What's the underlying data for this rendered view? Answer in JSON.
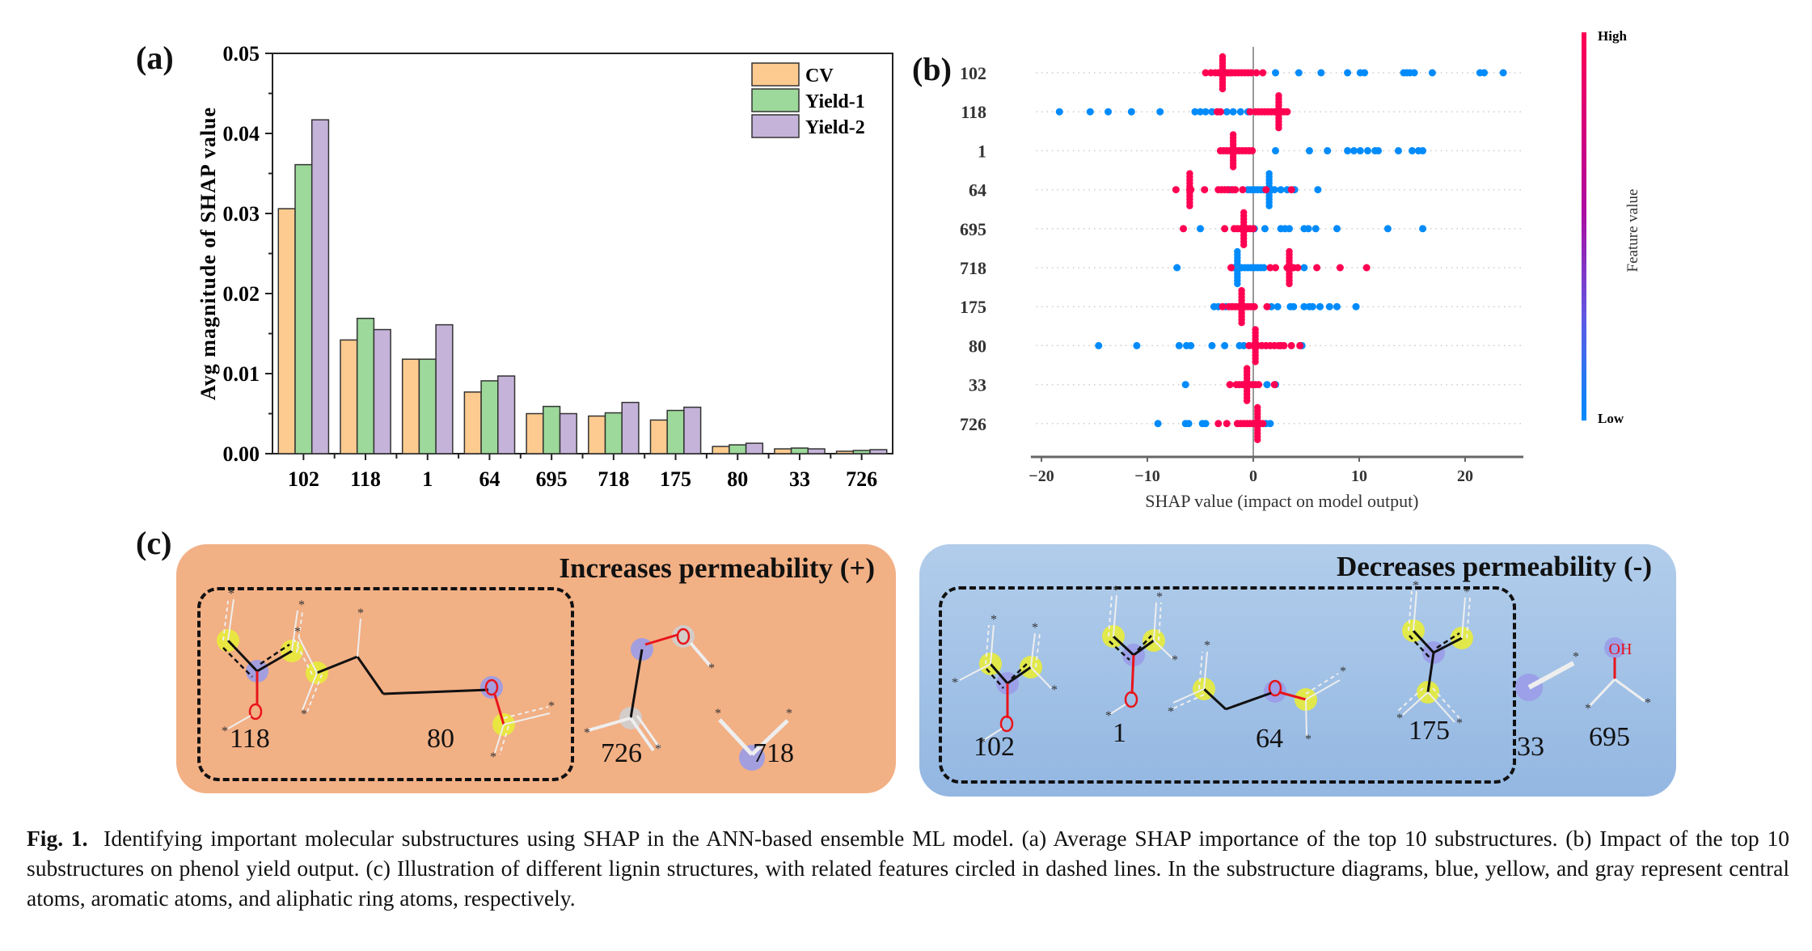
{
  "panel_labels": {
    "a": "(a)",
    "b": "(b)",
    "c": "(c)"
  },
  "chart_data": [
    {
      "id": "a",
      "type": "bar",
      "title": "",
      "xlabel": "",
      "ylabel": "Avg magnitude of SHAP value",
      "ylim": [
        0,
        0.05
      ],
      "yticks": [
        "0.00",
        "0.01",
        "0.02",
        "0.03",
        "0.04",
        "0.05"
      ],
      "categories": [
        "102",
        "118",
        "1",
        "64",
        "695",
        "718",
        "175",
        "80",
        "33",
        "726"
      ],
      "series": [
        {
          "name": "CV",
          "color": "#FDCB8F",
          "values": [
            0.0306,
            0.0142,
            0.0118,
            0.0077,
            0.005,
            0.0047,
            0.0042,
            0.0009,
            0.0006,
            0.0003
          ]
        },
        {
          "name": "Yield-1",
          "color": "#9CD99A",
          "values": [
            0.0361,
            0.0169,
            0.0118,
            0.0091,
            0.0059,
            0.0051,
            0.0054,
            0.0011,
            0.0007,
            0.0004
          ]
        },
        {
          "name": "Yield-2",
          "color": "#C5B3DA",
          "values": [
            0.0417,
            0.0155,
            0.0161,
            0.0097,
            0.005,
            0.0064,
            0.0058,
            0.0013,
            0.0006,
            0.0005
          ]
        }
      ],
      "legend": "top-right",
      "grid": false
    },
    {
      "id": "b",
      "type": "scatter",
      "subtype": "shap-beeswarm",
      "xlabel": "SHAP value (impact on model output)",
      "xlim": [
        -21,
        25.5
      ],
      "xticks": [
        -20,
        -10,
        0,
        10,
        20
      ],
      "xtick_labels": [
        "−20",
        "−10",
        "0",
        "10",
        "20"
      ],
      "features": [
        "102",
        "118",
        "1",
        "64",
        "695",
        "718",
        "175",
        "80",
        "33",
        "726"
      ],
      "colorbar": {
        "label": "Feature value",
        "high": "High",
        "low": "Low",
        "high_color": "#FF0052",
        "low_color": "#008BFB"
      },
      "rows": [
        {
          "feature": "102",
          "high": [
            -4.5,
            -4,
            -3.6,
            -3.3,
            -3,
            -2.8,
            -2.6,
            -2.4,
            -2.2,
            -2,
            -1.7,
            -1.4,
            -1.1,
            -0.8,
            -0.5,
            -0.2,
            0.3,
            0.9
          ],
          "high_cluster": -2.9,
          "low": [
            2.1,
            4.3,
            6.4,
            8.9,
            10.1,
            10.5,
            14.2,
            14.5,
            14.8,
            15.2,
            16.9,
            21.4,
            21.8,
            23.6
          ]
        },
        {
          "feature": "118",
          "high": [
            -3.4,
            -3.1,
            -0.3,
            0.2,
            0.5,
            0.8,
            1.1,
            1.4,
            1.7,
            2,
            2.3,
            2.6,
            2.9,
            3.2
          ],
          "high_cluster": 2.4,
          "low": [
            -18.3,
            -15.4,
            -13.7,
            -11.5,
            -8.8,
            -5.5,
            -5.0,
            -4.5,
            -3.9,
            -2.5,
            -1.9,
            -1.2,
            -0.5
          ]
        },
        {
          "feature": "1",
          "high": [
            -3.1,
            -2.8,
            -2.5,
            -2.2,
            -1.9,
            -1.6,
            -1.3,
            -1,
            -0.7,
            -0.4,
            -0.1
          ],
          "high_cluster": -1.9,
          "low": [
            2.1,
            5.3,
            7.0,
            8.9,
            9.5,
            10.1,
            10.8,
            11.5,
            11.8,
            13.7,
            15.0,
            15.6,
            16.0
          ]
        },
        {
          "feature": "64",
          "high": [
            -7.3,
            -6.0,
            -5.9,
            -4.6,
            -3.3,
            -3.0,
            -2.7,
            -2.4,
            -2.0,
            -1.7,
            -1.0,
            1.2,
            3.6
          ],
          "high_cluster": -6.0,
          "low": [
            -2.2,
            -0.5,
            -0.2,
            0.1,
            0.4,
            0.7,
            1.0,
            1.3,
            1.6,
            2.0,
            2.6,
            3.2,
            3.9,
            6.1
          ],
          "low_cluster": 1.5
        },
        {
          "feature": "695",
          "high": [
            -6.6,
            -2.7,
            -1.8,
            -1.5,
            -1.2,
            -0.9,
            -0.6,
            -0.3,
            0
          ],
          "high_cluster": -0.9,
          "low": [
            -5.0,
            0.1,
            1.1,
            2.6,
            3.0,
            3.4,
            4.8,
            5.2,
            5.9,
            7.9,
            12.7,
            16.0
          ]
        },
        {
          "feature": "718",
          "high": [
            -2.1,
            1.6,
            2.1,
            3.2,
            3.5,
            3.8,
            4.2,
            6.0,
            8.2,
            10.7
          ],
          "high_cluster": 3.4,
          "low": [
            -7.2,
            -2.0,
            -1.7,
            -1.4,
            -1.1,
            -0.8,
            -0.5,
            -0.2,
            0.1,
            0.4,
            0.7,
            1.0,
            4.8
          ],
          "low_cluster": -1.5
        },
        {
          "feature": "175",
          "high": [
            -2.9,
            -2.3,
            -2.0,
            -1.7,
            -1.4,
            -1.1,
            -0.8,
            -0.5,
            -0.2,
            0.1,
            1.3
          ],
          "high_cluster": -1.1,
          "low": [
            -3.7,
            -3.3,
            -2.6,
            1.7,
            2.3,
            3.5,
            3.8,
            4.8,
            5.3,
            5.6,
            6.3,
            7.2,
            7.9,
            9.7
          ],
          "low_cluster": null
        },
        {
          "feature": "80",
          "high": [
            -0.4,
            0,
            0.4,
            0.8,
            1.2,
            1.6,
            2.0,
            2.4,
            2.6,
            2.9,
            3.6,
            4.4
          ],
          "high_cluster": 0.2,
          "low": [
            -14.6,
            -11.0,
            -7.0,
            -6.3,
            -5.9,
            -3.9,
            -2.7,
            -1.3,
            -0.9,
            4.6
          ]
        },
        {
          "feature": "33",
          "high": [
            -2.2,
            -1.6,
            -1.3,
            -1.0,
            -0.7,
            -0.4,
            -0.1,
            0.2,
            0.5,
            2.0
          ],
          "high_cluster": -0.6,
          "low": [
            -6.4,
            1.3,
            2.1
          ]
        },
        {
          "feature": "726",
          "high": [
            -3.3,
            -2.5,
            -1.5,
            -1.2,
            -0.9,
            -0.6,
            -0.3,
            0,
            0.3,
            0.6,
            0.9
          ],
          "high_cluster": 0.4,
          "low": [
            -9.0,
            -6.4,
            -6.1,
            -4.8,
            -4.5,
            1.2,
            1.6
          ]
        }
      ]
    }
  ],
  "panel_c": {
    "increases": {
      "title": "Increases permeability (+)",
      "color": "#F2B085",
      "boxed": [
        "118",
        "80"
      ],
      "others": [
        "726",
        "718"
      ]
    },
    "decreases": {
      "title": "Decreases permeability (-)",
      "color_top": "#B2CDEB",
      "color_bottom": "#93B7E2",
      "boxed": [
        "102",
        "1",
        "64",
        "175"
      ],
      "others": [
        "33",
        "695"
      ]
    },
    "atom_colors": {
      "central": "#9A9CE8",
      "aromatic": "#E8EC3A",
      "aliphatic_ring": "#CFCFCF",
      "oxygen": "#E8141A"
    },
    "oh_label": "OH",
    "star": "*"
  },
  "caption": {
    "fig_label": "Fig. 1.",
    "text": "Identifying important molecular substructures using SHAP in the ANN-based ensemble ML model. (a) Average SHAP importance of the top 10 substructures. (b) Impact of the top 10 substructures on phenol yield output. (c) Illustration of different lignin structures, with related features circled in dashed lines. In the substructure diagrams, blue, yellow, and gray represent central atoms, aromatic atoms, and aliphatic ring atoms, respectively."
  }
}
